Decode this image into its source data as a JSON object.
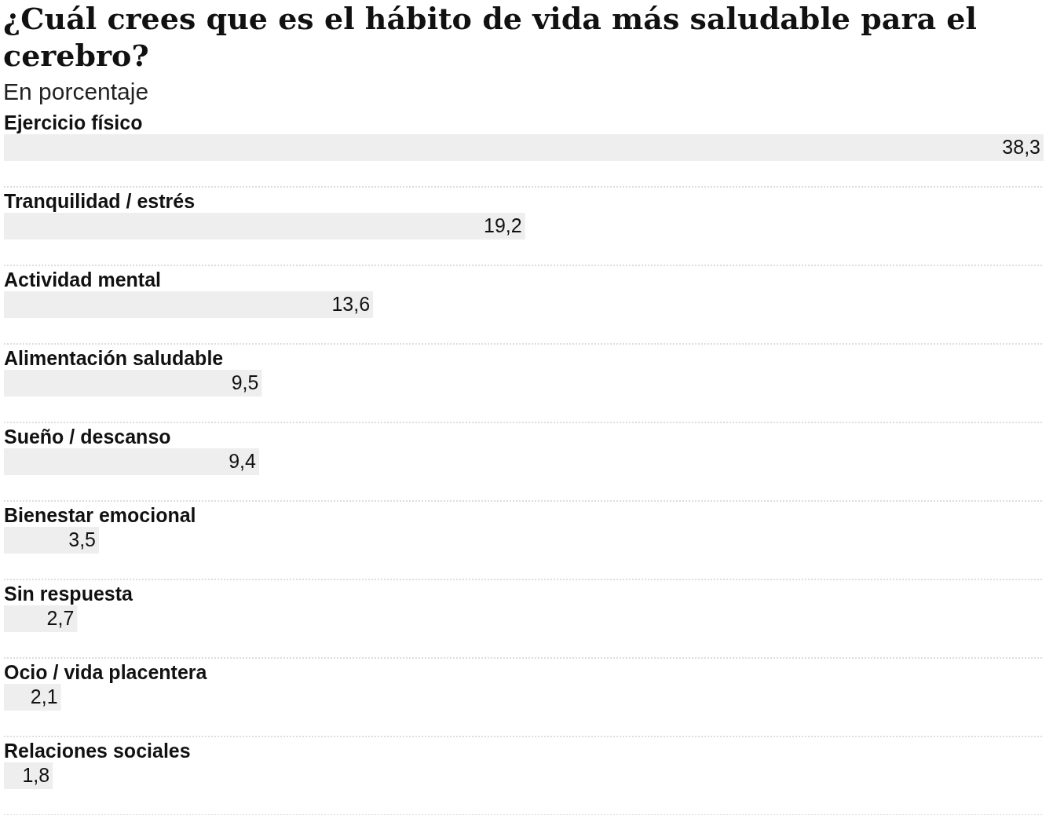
{
  "chart_data": {
    "type": "bar",
    "orientation": "horizontal",
    "title": "¿Cuál crees que es el hábito de vida más saludable para el cerebro?",
    "subtitle": "En porcentaje",
    "categories": [
      "Ejercicio físico",
      "Tranquilidad / estrés",
      "Actividad mental",
      "Alimentación saludable",
      "Sueño / descanso",
      "Bienestar emocional",
      "Sin respuesta",
      "Ocio / vida placentera",
      "Relaciones sociales"
    ],
    "values": [
      38.3,
      19.2,
      13.6,
      9.5,
      9.4,
      3.5,
      2.7,
      2.1,
      1.8
    ],
    "value_labels": [
      "38,3",
      "19,2",
      "13,6",
      "9,5",
      "9,4",
      "3,5",
      "2,7",
      "2,1",
      "1,8"
    ],
    "color": "#eeeeee",
    "grid": "y",
    "legend": false
  }
}
